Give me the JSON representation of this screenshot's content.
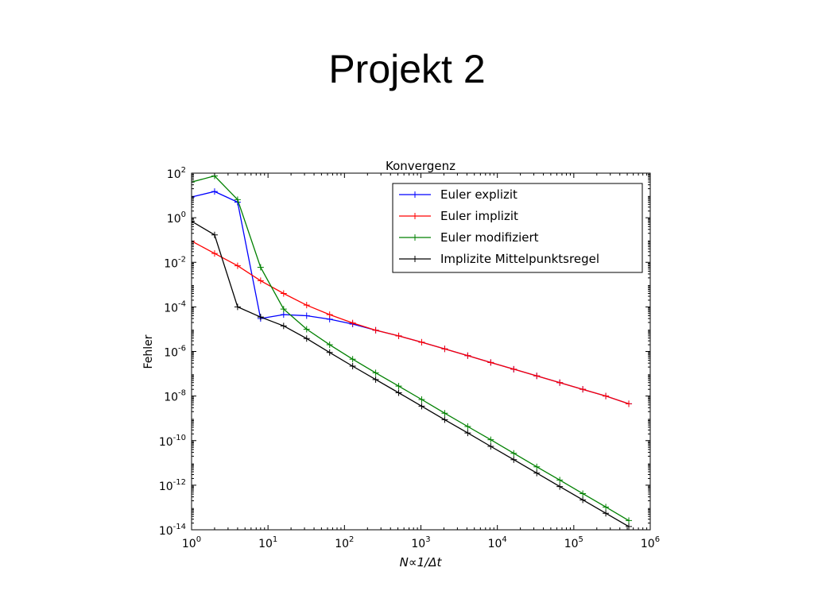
{
  "slide": {
    "title": "Projekt 2"
  },
  "chart_data": {
    "type": "line",
    "title": "Konvergenz",
    "xlabel": "N∝1/Δt",
    "ylabel": "Fehler",
    "xscale": "log",
    "yscale": "log",
    "xlim": [
      1,
      1000000
    ],
    "ylim": [
      1e-14,
      100
    ],
    "x_ticks": [
      {
        "value": 1,
        "base": "10",
        "exp": "0"
      },
      {
        "value": 10,
        "base": "10",
        "exp": "1"
      },
      {
        "value": 100,
        "base": "10",
        "exp": "2"
      },
      {
        "value": 1000,
        "base": "10",
        "exp": "3"
      },
      {
        "value": 10000,
        "base": "10",
        "exp": "4"
      },
      {
        "value": 100000,
        "base": "10",
        "exp": "5"
      },
      {
        "value": 1000000,
        "base": "10",
        "exp": "6"
      }
    ],
    "y_ticks": [
      {
        "value": 100,
        "base": "10",
        "exp": "2"
      },
      {
        "value": 1,
        "base": "10",
        "exp": "0"
      },
      {
        "value": 0.01,
        "base": "10",
        "exp": "-2"
      },
      {
        "value": 0.0001,
        "base": "10",
        "exp": "-4"
      },
      {
        "value": 1e-06,
        "base": "10",
        "exp": "-6"
      },
      {
        "value": 1e-08,
        "base": "10",
        "exp": "-8"
      },
      {
        "value": 1e-10,
        "base": "10",
        "exp": "-10"
      },
      {
        "value": 1e-12,
        "base": "10",
        "exp": "-12"
      },
      {
        "value": 1e-14,
        "base": "10",
        "exp": "-14"
      }
    ],
    "grid": false,
    "legend_position": "top-right",
    "x": [
      1,
      2,
      4,
      8,
      16,
      32,
      64,
      128,
      256,
      512,
      1024,
      2048,
      4096,
      8192,
      16384,
      32768,
      65536,
      131072,
      262144,
      524288
    ],
    "series": [
      {
        "name": "Euler explizit",
        "color": "#0000ff",
        "values": [
          8.5,
          15,
          5,
          3e-05,
          4.5e-05,
          4e-05,
          2.8e-05,
          1.7e-05,
          9e-06,
          5e-06,
          2.6e-06,
          1.3e-06,
          6.5e-07,
          3.2e-07,
          1.6e-07,
          8e-08,
          4e-08,
          2e-08,
          1e-08,
          4.5e-09
        ]
      },
      {
        "name": "Euler implizit",
        "color": "#ff0000",
        "values": [
          0.09,
          0.025,
          0.007,
          0.0015,
          0.0004,
          0.00012,
          4.5e-05,
          1.9e-05,
          9e-06,
          5e-06,
          2.6e-06,
          1.3e-06,
          6.5e-07,
          3.2e-07,
          1.6e-07,
          8e-08,
          4e-08,
          2e-08,
          1e-08,
          4.5e-09
        ]
      },
      {
        "name": "Euler modifiziert",
        "color": "#008000",
        "values": [
          40,
          75,
          6.5,
          0.006,
          8e-05,
          1e-05,
          2e-06,
          4.5e-07,
          1.1e-07,
          2.8e-08,
          7e-09,
          1.7e-09,
          4.3e-10,
          1.1e-10,
          2.7e-11,
          6.7e-12,
          1.7e-12,
          4.2e-13,
          1.05e-13,
          2.6e-14
        ]
      },
      {
        "name": "Implizite Mittelpunktsregel",
        "color": "#000000",
        "values": [
          0.7,
          0.17,
          0.0001,
          3.5e-05,
          1.4e-05,
          3.8e-06,
          9e-07,
          2.2e-07,
          5.5e-08,
          1.4e-08,
          3.5e-09,
          8.7e-10,
          2.2e-10,
          5.5e-11,
          1.4e-11,
          3.5e-12,
          8.7e-13,
          2.2e-13,
          5.5e-14,
          1.4e-14
        ]
      }
    ]
  }
}
